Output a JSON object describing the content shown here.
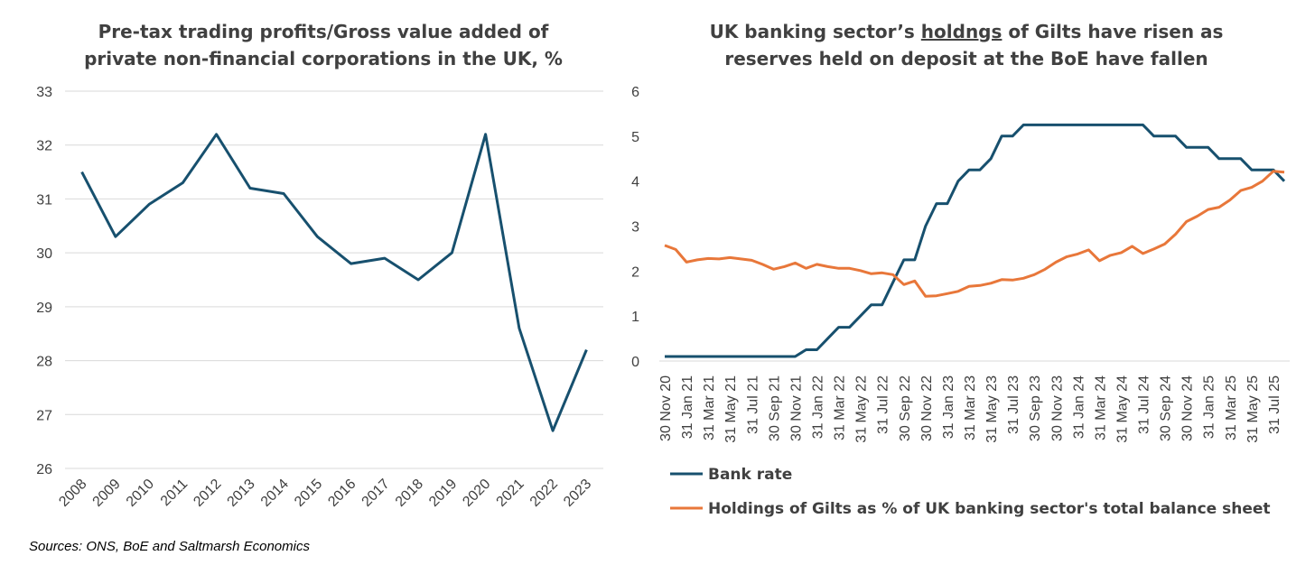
{
  "colors": {
    "bank_rate": "#17506e",
    "gilts": "#e8773a",
    "profits": "#17506e",
    "grid": "#d9d9d9",
    "text": "#404040"
  },
  "sources": "Sources: ONS, BoE and Saltmarsh Economics",
  "chart_data": [
    {
      "type": "line",
      "title_lines": [
        "Pre-tax trading profits/Gross value added of",
        "private non-financial corporations in the UK, %"
      ],
      "categories": [
        "2008",
        "2009",
        "2010",
        "2011",
        "2012",
        "2013",
        "2014",
        "2015",
        "2016",
        "2017",
        "2018",
        "2019",
        "2020",
        "2021",
        "2022",
        "2023"
      ],
      "series": [
        {
          "name": "Pre-tax trading profits/GVA",
          "values": [
            31.5,
            30.3,
            30.9,
            31.3,
            32.2,
            31.2,
            31.1,
            30.3,
            29.8,
            29.9,
            29.5,
            30.0,
            32.2,
            28.6,
            26.7,
            28.2
          ]
        }
      ],
      "ylim": [
        26,
        33
      ],
      "yticks": [
        "26",
        "27",
        "28",
        "29",
        "30",
        "31",
        "32",
        "33"
      ],
      "grid": true,
      "xlabel": "",
      "ylabel": ""
    },
    {
      "type": "line",
      "title_lines": [
        "UK banking sector’s holdngs of Gilts have risen as",
        "reserves held on deposit at the BoE have fallen"
      ],
      "x_tick_labels": [
        "30 Nov 20",
        "31 Jan 21",
        "31 Mar 21",
        "31 May 21",
        "31 Jul 21",
        "30 Sep 21",
        "30 Nov 21",
        "31 Jan 22",
        "31 Mar 22",
        "31 May 22",
        "31 Jul 22",
        "30 Sep 22",
        "30 Nov 22",
        "31 Jan 23",
        "31 Mar 23",
        "31 May 23",
        "31 Jul 23",
        "30 Sep 23",
        "30 Nov 23",
        "31 Jan 24",
        "31 Mar 24",
        "31 May 24",
        "31 Jul 24",
        "30 Sep 24",
        "30 Nov 24",
        "31 Jan 25",
        "31 Mar 25",
        "31 May 25",
        "31 Jul 25"
      ],
      "series": [
        {
          "name": "Bank rate",
          "values": [
            0.1,
            0.1,
            0.1,
            0.1,
            0.1,
            0.1,
            0.1,
            0.1,
            0.1,
            0.1,
            0.1,
            0.1,
            0.1,
            0.25,
            0.25,
            0.5,
            0.75,
            0.75,
            1.0,
            1.25,
            1.25,
            1.75,
            2.25,
            2.25,
            3.0,
            3.5,
            3.5,
            4.0,
            4.25,
            4.25,
            4.5,
            5.0,
            5.0,
            5.25,
            5.25,
            5.25,
            5.25,
            5.25,
            5.25,
            5.25,
            5.25,
            5.25,
            5.25,
            5.25,
            5.25,
            5.0,
            5.0,
            5.0,
            4.75,
            4.75,
            4.75,
            4.5,
            4.5,
            4.5,
            4.25,
            4.25,
            4.25,
            4.0
          ]
        },
        {
          "name": "Holdings of Gilts as % of UK banking sector's total balance sheet",
          "values": [
            2.57,
            2.48,
            2.2,
            2.25,
            2.28,
            2.27,
            2.3,
            2.27,
            2.24,
            2.15,
            2.04,
            2.1,
            2.18,
            2.06,
            2.15,
            2.1,
            2.06,
            2.06,
            2.01,
            1.94,
            1.96,
            1.92,
            1.7,
            1.78,
            1.44,
            1.45,
            1.5,
            1.55,
            1.66,
            1.68,
            1.73,
            1.81,
            1.8,
            1.84,
            1.92,
            2.04,
            2.2,
            2.32,
            2.38,
            2.47,
            2.23,
            2.35,
            2.41,
            2.55,
            2.39,
            2.49,
            2.6,
            2.82,
            3.1,
            3.22,
            3.37,
            3.42,
            3.58,
            3.79,
            3.86,
            4.0,
            4.22,
            4.2
          ]
        }
      ],
      "ylim": [
        0,
        6
      ],
      "yticks": [
        "0",
        "1",
        "2",
        "3",
        "4",
        "5",
        "6"
      ],
      "grid": true,
      "legend": [
        "Bank rate",
        "Holdings of Gilts as % of UK banking sector's total balance sheet"
      ],
      "legend_position": "bottom",
      "xlabel": "",
      "ylabel": ""
    }
  ]
}
